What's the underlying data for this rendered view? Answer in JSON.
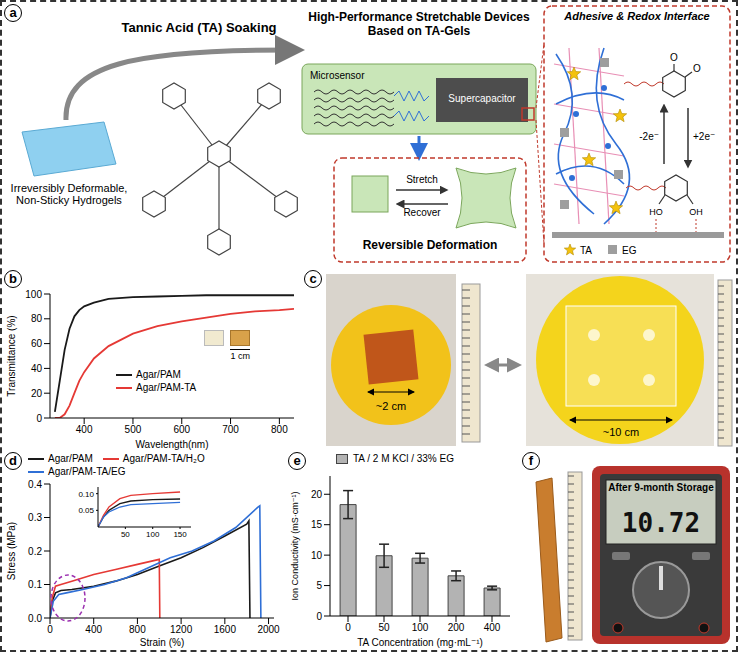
{
  "schematic": {
    "panel": "a",
    "arrow_label": "Tannic Acid (TA) Soaking",
    "start_caption": "Irreversibly Deformable, Non-Sticky Hydrogels",
    "device_title": "High-Performance Stretchable Devices Based on TA-Gels",
    "sensor": "Microsensor",
    "storage": "Supercapacitor",
    "deformation": {
      "title": "Reversible Deformation",
      "forward": "Stretch",
      "backward": "Recover"
    },
    "interface": {
      "title": "Adhesive & Redox Interface",
      "oxidation": "-2e⁻",
      "reduction": "+2e⁻",
      "quinone_groups": [
        "O",
        "O"
      ],
      "catechol_groups": [
        "HO",
        "OH"
      ],
      "legend": [
        "TA",
        "EG"
      ]
    }
  },
  "chart_data": [
    {
      "panel": "b",
      "type": "line",
      "x_label": "Wavelength(nm)",
      "y_label": "Transmittance (%)",
      "x": [
        340,
        350,
        360,
        370,
        380,
        390,
        400,
        420,
        450,
        500,
        550,
        600,
        650,
        700,
        750,
        800,
        830
      ],
      "xlim": [
        330,
        830
      ],
      "xticks": [
        400,
        500,
        600,
        700,
        800
      ],
      "ylim": [
        0,
        100
      ],
      "yticks": [
        0,
        20,
        40,
        60,
        80,
        100
      ],
      "legend": "bottom-right",
      "scale_bar": "1 cm",
      "series": [
        {
          "name": "Agar/PAM",
          "color": "#1a1a1a",
          "values": [
            5,
            30,
            55,
            72,
            82,
            87,
            90,
            93,
            96,
            97.5,
            98,
            98.5,
            99,
            99,
            99,
            99,
            99
          ]
        },
        {
          "name": "Agar/PAM-TA",
          "color": "#e53935",
          "values": [
            0,
            0,
            3,
            10,
            20,
            30,
            37,
            48,
            58,
            68,
            74,
            78,
            81,
            84,
            86,
            87,
            88
          ]
        }
      ]
    },
    {
      "panel": "d",
      "type": "line",
      "x_label": "Strain (%)",
      "y_label": "Stress (MPa)",
      "xlim": [
        0,
        2050
      ],
      "xticks": [
        0,
        400,
        800,
        1200,
        1600,
        2000
      ],
      "ylim": [
        0,
        0.4
      ],
      "yticks": [
        {
          "value": 0,
          "label": "0.0"
        },
        0.1,
        0.2,
        0.3,
        0.4
      ],
      "legend": "top",
      "series": [
        {
          "name": "Agar/PAM",
          "color": "#1a1a1a",
          "x": [
            0,
            20,
            50,
            100,
            200,
            400,
            600,
            800,
            1000,
            1200,
            1400,
            1600,
            1800,
            1820,
            1830
          ],
          "values": [
            0,
            0.05,
            0.075,
            0.082,
            0.085,
            0.095,
            0.11,
            0.13,
            0.155,
            0.18,
            0.21,
            0.245,
            0.28,
            0.29,
            0
          ]
        },
        {
          "name": "Agar/PAM-TA/H₂O",
          "color": "#e53935",
          "x": [
            0,
            20,
            50,
            100,
            200,
            400,
            600,
            800,
            1000,
            1005
          ],
          "values": [
            0,
            0.06,
            0.095,
            0.1,
            0.11,
            0.13,
            0.145,
            0.16,
            0.175,
            0
          ]
        },
        {
          "name": "Agar/PAM-TA/EG",
          "color": "#2f6fd6",
          "x": [
            0,
            30,
            80,
            150,
            300,
            500,
            700,
            900,
            1100,
            1300,
            1500,
            1700,
            1900,
            1920,
            1930
          ],
          "values": [
            0,
            0.05,
            0.07,
            0.075,
            0.085,
            0.1,
            0.12,
            0.15,
            0.18,
            0.2,
            0.23,
            0.27,
            0.33,
            0.335,
            0
          ]
        }
      ],
      "inset": {
        "type": "line",
        "x": [
          0,
          10,
          20,
          40,
          60,
          100,
          150
        ],
        "xlim": [
          0,
          170
        ],
        "xticks": [
          50,
          100,
          150
        ],
        "ylim": [
          0,
          0.12
        ],
        "yticks": [
          0.05,
          {
            "value": 0.1,
            "label": "0.10"
          }
        ],
        "series": [
          {
            "color": "#1a1a1a",
            "values": [
              0,
              0.03,
              0.05,
              0.07,
              0.078,
              0.082,
              0.084
            ]
          },
          {
            "color": "#e53935",
            "values": [
              0,
              0.035,
              0.06,
              0.085,
              0.095,
              0.1,
              0.105
            ]
          },
          {
            "color": "#2f6fd6",
            "values": [
              0,
              0.03,
              0.045,
              0.06,
              0.067,
              0.07,
              0.074
            ]
          }
        ]
      }
    },
    {
      "panel": "e",
      "type": "bar",
      "x_label": "TA Concentration (mg·mL⁻¹)",
      "y_label": "Ion Conductivity (mS·cm⁻¹)",
      "categories": [
        "0",
        "50",
        "100",
        "200",
        "400"
      ],
      "ylim": [
        0,
        23
      ],
      "yticks": [
        0,
        5,
        10,
        15,
        20
      ],
      "legend": "top-left",
      "series": [
        {
          "name": "TA / 2 M KCl / 33% EG",
          "color": "#b3b3b3",
          "values": [
            18.3,
            9.9,
            9.5,
            6.6,
            4.6
          ],
          "error": [
            2.3,
            1.9,
            0.8,
            0.8,
            0.3
          ]
        }
      ]
    }
  ],
  "photos": [
    {
      "panel": "c",
      "small_size": "~2 cm",
      "large_size": "~10 cm"
    },
    {
      "panel": "f",
      "caption": "After 9-month Storage",
      "reading": "10.72"
    }
  ]
}
